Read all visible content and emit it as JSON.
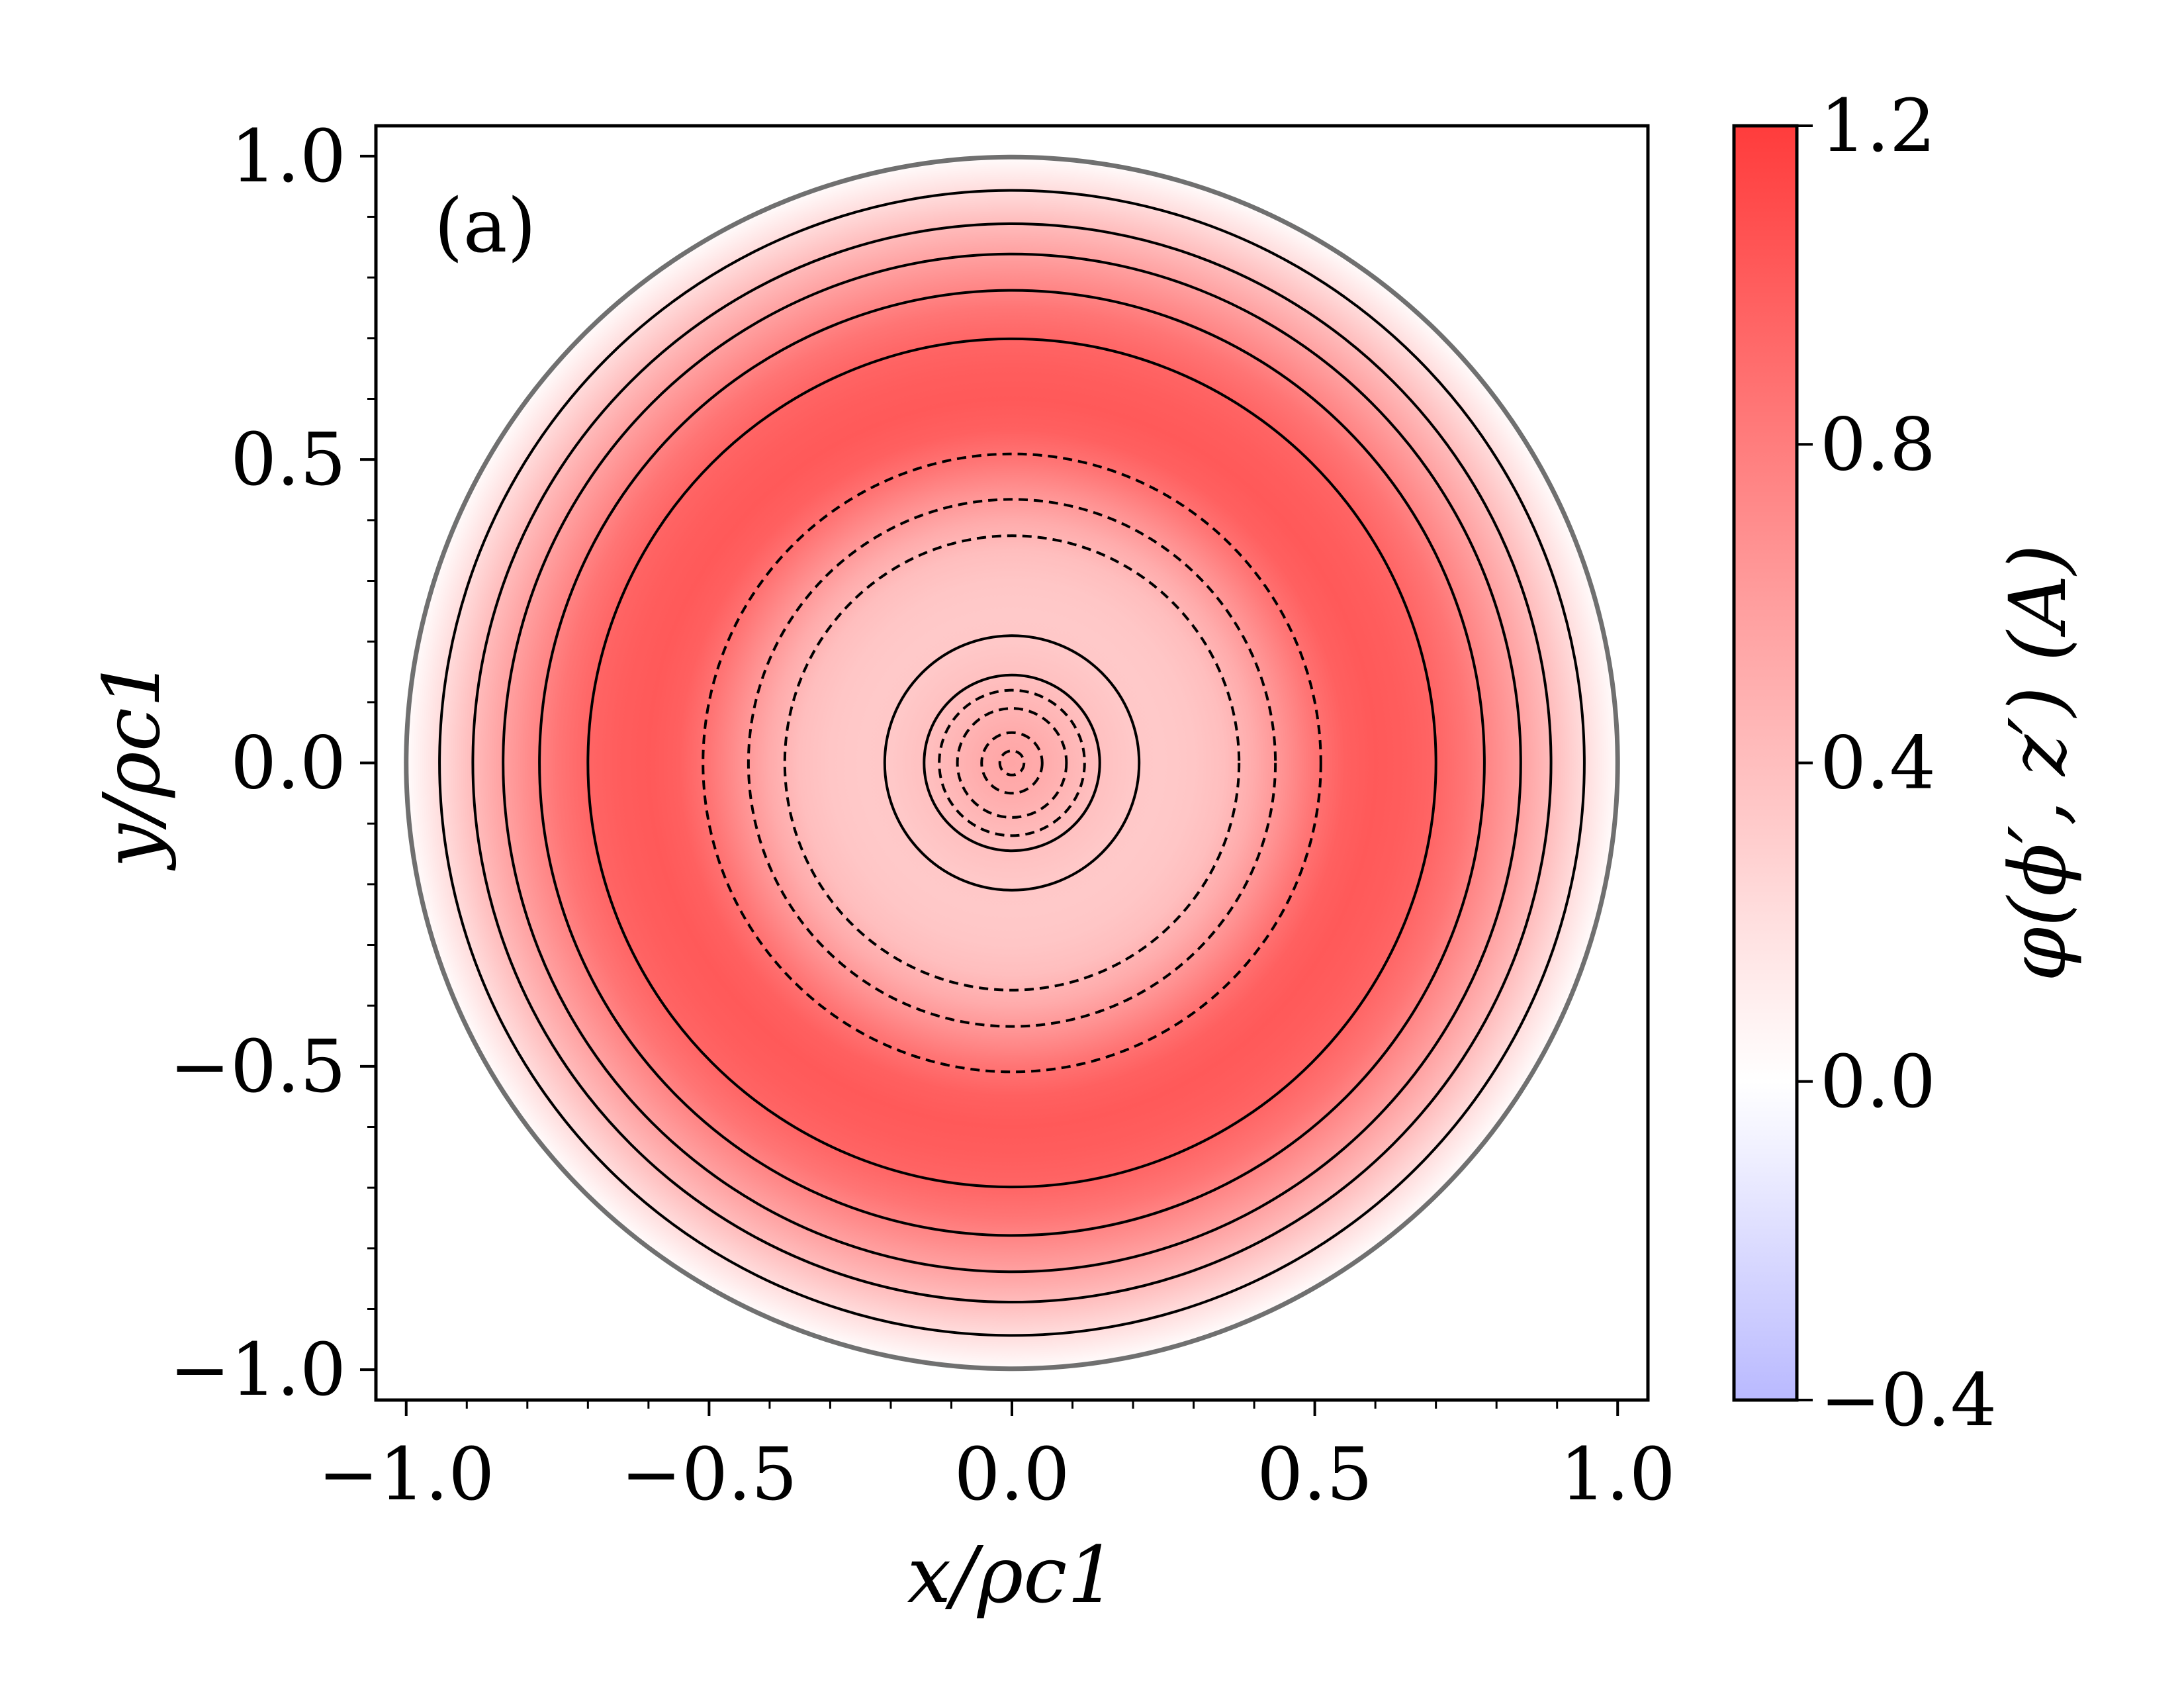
{
  "chart_data": {
    "type": "heatmap",
    "panel_label": "(a)",
    "xlabel": "x/ρc1",
    "ylabel": "y/ρc1",
    "xlim": [
      -1.05,
      1.05
    ],
    "ylim": [
      -1.05,
      1.05
    ],
    "x_ticks": [
      -1.0,
      -0.5,
      0.0,
      0.5,
      1.0
    ],
    "x_tick_labels": [
      "−1.0",
      "−0.5",
      "0.0",
      "0.5",
      "1.0"
    ],
    "y_ticks": [
      -1.0,
      -0.5,
      0.0,
      0.5,
      1.0
    ],
    "y_tick_labels": [
      "−1.0",
      "−0.5",
      "0.0",
      "0.5",
      "1.0"
    ],
    "domain": "unit disk",
    "colormap": "bwr",
    "color_min": "#b9b9ff",
    "color_mid": "#ffffff",
    "color_max": "#ff3c3c",
    "colorbar": {
      "label": "φ(ϕ′, z′) (A)",
      "vmin": -0.4,
      "vmax": 1.2,
      "ticks": [
        1.2,
        0.8,
        0.4,
        0.0,
        -0.4
      ],
      "tick_labels": [
        "1.2",
        "0.8",
        "0.4",
        "0.0",
        "−0.4"
      ]
    },
    "radial_profile": {
      "r": [
        0.0,
        0.05,
        0.1,
        0.15,
        0.2,
        0.25,
        0.3,
        0.35,
        0.4,
        0.45,
        0.5,
        0.55,
        0.6,
        0.65,
        0.7,
        0.75,
        0.8,
        0.85,
        0.9,
        0.95,
        1.0
      ],
      "value": [
        0.55,
        0.52,
        0.45,
        0.38,
        0.34,
        0.33,
        0.35,
        0.4,
        0.52,
        0.68,
        0.85,
        0.98,
        1.02,
        1.0,
        0.95,
        0.85,
        0.7,
        0.55,
        0.38,
        0.2,
        0.02
      ]
    },
    "contours": [
      {
        "r": 0.02,
        "style": "dashed"
      },
      {
        "r": 0.05,
        "style": "dashed"
      },
      {
        "r": 0.09,
        "style": "dashed"
      },
      {
        "r": 0.12,
        "style": "dashed"
      },
      {
        "r": 0.145,
        "style": "solid"
      },
      {
        "r": 0.21,
        "style": "solid"
      },
      {
        "r": 0.375,
        "style": "dashed"
      },
      {
        "r": 0.435,
        "style": "dashed"
      },
      {
        "r": 0.51,
        "style": "dashed"
      },
      {
        "r": 0.7,
        "style": "solid"
      },
      {
        "r": 0.78,
        "style": "solid"
      },
      {
        "r": 0.84,
        "style": "solid"
      },
      {
        "r": 0.89,
        "style": "solid"
      },
      {
        "r": 0.945,
        "style": "solid"
      }
    ],
    "boundary": {
      "r": 1.0,
      "color": "#707070"
    }
  }
}
